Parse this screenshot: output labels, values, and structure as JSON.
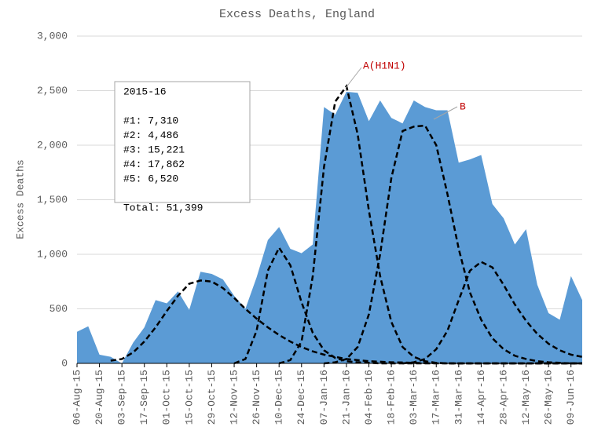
{
  "chart_data": {
    "type": "area",
    "title": "Excess Deaths, England",
    "y_label": "Excess Deaths",
    "categories": [
      "06-Aug-15",
      null,
      "20-Aug-15",
      null,
      "03-Sep-15",
      null,
      "17-Sep-15",
      null,
      "01-Oct-15",
      null,
      "15-Oct-15",
      null,
      "29-Oct-15",
      null,
      "12-Nov-15",
      null,
      "26-Nov-15",
      null,
      "10-Dec-15",
      null,
      "24-Dec-15",
      null,
      "07-Jan-16",
      null,
      "21-Jan-16",
      null,
      "04-Feb-16",
      null,
      "18-Feb-16",
      null,
      "03-Mar-16",
      null,
      "17-Mar-16",
      null,
      "31-Mar-16",
      null,
      "14-Apr-16",
      null,
      "28-Apr-16",
      null,
      "12-May-16",
      null,
      "26-May-16",
      null,
      "09-Jun-16",
      null
    ],
    "ylim": [
      0,
      3000
    ],
    "yticks": [
      0,
      500,
      {
        "value": 1000,
        "label": "1,000"
      },
      {
        "value": 1500,
        "label": "1,500"
      },
      {
        "value": 2000,
        "label": "2,000"
      },
      {
        "value": 2500,
        "label": "2,500"
      },
      {
        "value": 3000,
        "label": "3,000"
      }
    ],
    "grid": true,
    "series": [
      {
        "type": "area",
        "color": "#5b9bd5",
        "values": [
          290,
          340,
          80,
          60,
          0,
          190,
          330,
          580,
          550,
          660,
          490,
          840,
          820,
          770,
          620,
          500,
          790,
          1130,
          1250,
          1050,
          1010,
          1090,
          2350,
          2280,
          2490,
          2480,
          2220,
          2410,
          2250,
          2200,
          2410,
          2350,
          2320,
          2320,
          1840,
          1870,
          1910,
          1460,
          1330,
          1090,
          1230,
          720,
          460,
          400,
          800,
          580
        ]
      },
      {
        "type": "line",
        "color": "#000000",
        "dashed": true,
        "values": [
          null,
          null,
          null,
          25,
          40,
          100,
          200,
          330,
          480,
          620,
          730,
          760,
          750,
          690,
          600,
          500,
          410,
          330,
          260,
          200,
          150,
          110,
          80,
          60,
          40,
          30,
          20,
          15,
          10,
          8,
          5,
          3,
          2,
          1,
          0,
          0,
          0,
          0,
          0,
          0,
          0,
          0,
          0,
          0,
          0,
          0
        ]
      },
      {
        "type": "line",
        "color": "#000000",
        "dashed": true,
        "values": [
          null,
          null,
          null,
          null,
          null,
          null,
          null,
          null,
          null,
          null,
          null,
          null,
          null,
          null,
          0,
          40,
          300,
          850,
          1060,
          900,
          560,
          280,
          120,
          50,
          20,
          10,
          5,
          0,
          0,
          0,
          0,
          0,
          0,
          0,
          0,
          0,
          0,
          0,
          0,
          0,
          0,
          0,
          0,
          0,
          0,
          0
        ]
      },
      {
        "type": "line",
        "color": "#000000",
        "dashed": true,
        "values": [
          null,
          null,
          null,
          null,
          null,
          null,
          null,
          null,
          null,
          null,
          null,
          null,
          null,
          null,
          null,
          null,
          null,
          null,
          0,
          30,
          200,
          800,
          1800,
          2400,
          2540,
          2100,
          1400,
          800,
          380,
          150,
          60,
          20,
          5,
          0,
          0,
          0,
          0,
          0,
          0,
          0,
          0,
          0,
          0,
          0,
          0,
          0
        ]
      },
      {
        "type": "line",
        "color": "#000000",
        "dashed": true,
        "values": [
          null,
          null,
          null,
          null,
          null,
          null,
          null,
          null,
          null,
          null,
          null,
          null,
          null,
          null,
          null,
          null,
          null,
          null,
          null,
          null,
          null,
          null,
          0,
          10,
          40,
          150,
          450,
          1000,
          1700,
          2130,
          2170,
          2180,
          2000,
          1550,
          1050,
          650,
          400,
          230,
          130,
          70,
          40,
          20,
          10,
          5,
          0,
          0
        ]
      },
      {
        "type": "line",
        "color": "#000000",
        "dashed": true,
        "values": [
          null,
          null,
          null,
          null,
          null,
          null,
          null,
          null,
          null,
          null,
          null,
          null,
          null,
          null,
          null,
          null,
          null,
          null,
          null,
          null,
          null,
          null,
          null,
          null,
          null,
          null,
          null,
          null,
          null,
          0,
          10,
          40,
          130,
          300,
          580,
          850,
          930,
          880,
          720,
          540,
          390,
          270,
          180,
          120,
          80,
          60
        ]
      }
    ],
    "annotations": [
      "A(H1N1)",
      "B"
    ],
    "annotation_color": "#c00000",
    "text_box": [
      "2015-16",
      "#1: 7,310",
      "#2: 4,486",
      "#3: 15,221",
      "#4: 17,862",
      "#5: 6,520",
      "Total: 51,399"
    ]
  }
}
